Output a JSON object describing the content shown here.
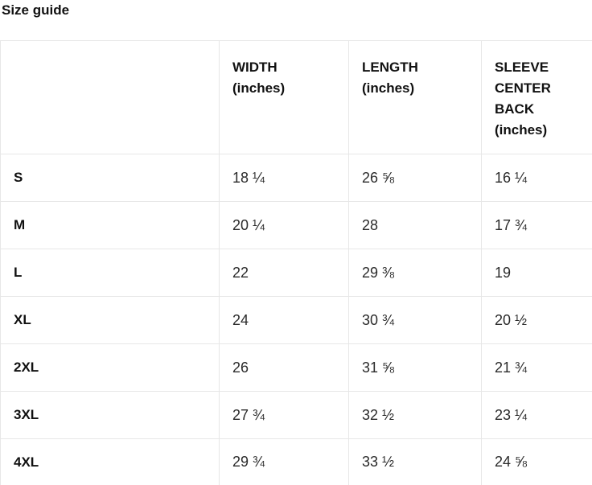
{
  "page": {
    "title": "Size guide"
  },
  "size_table": {
    "columns": [
      {
        "id": "size",
        "label": ""
      },
      {
        "id": "width",
        "label": "WIDTH\n(inches)"
      },
      {
        "id": "length",
        "label": "LENGTH\n(inches)"
      },
      {
        "id": "sleeve",
        "label": "SLEEVE\nCENTER\nBACK\n(inches)"
      }
    ],
    "rows": [
      {
        "size": "S",
        "width": "18 ¼",
        "length": "26 ⅝",
        "sleeve": "16 ¼"
      },
      {
        "size": "M",
        "width": "20 ¼",
        "length": "28",
        "sleeve": "17 ¾"
      },
      {
        "size": "L",
        "width": "22",
        "length": "29 ⅜",
        "sleeve": "19"
      },
      {
        "size": "XL",
        "width": "24",
        "length": "30 ¾",
        "sleeve": "20 ½"
      },
      {
        "size": "2XL",
        "width": "26",
        "length": "31 ⅝",
        "sleeve": "21 ¾"
      },
      {
        "size": "3XL",
        "width": "27 ¾",
        "length": "32 ½",
        "sleeve": "23 ¼"
      },
      {
        "size": "4XL",
        "width": "29 ¾",
        "length": "33 ½",
        "sleeve": "24 ⅝"
      }
    ]
  }
}
